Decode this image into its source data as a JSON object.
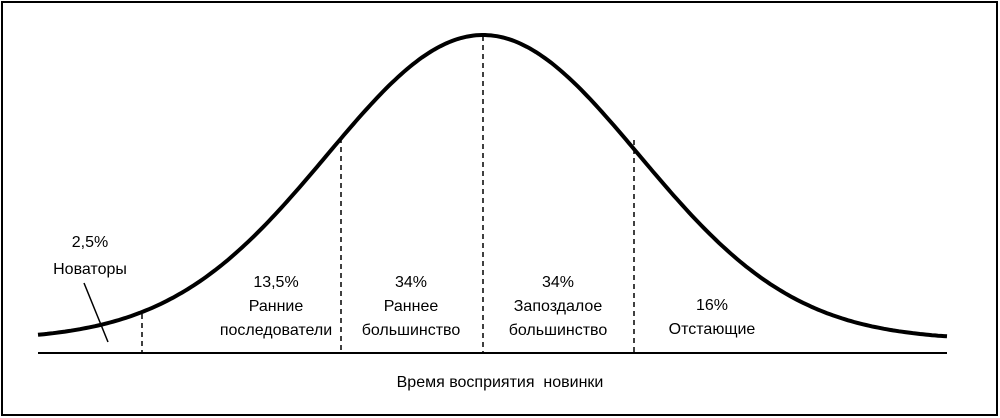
{
  "segments": [
    {
      "percent": "2,5%",
      "label": [
        "Новаторы"
      ]
    },
    {
      "percent": "13,5%",
      "label": [
        "Ранние",
        "последователи"
      ]
    },
    {
      "percent": "34%",
      "label": [
        "Раннее",
        "большинство"
      ]
    },
    {
      "percent": "34%",
      "label": [
        "Запоздалое",
        "большинство"
      ]
    },
    {
      "percent": "16%",
      "label": [
        "Отстающие"
      ]
    }
  ],
  "axis_label": "Время восприятия  новинки"
}
